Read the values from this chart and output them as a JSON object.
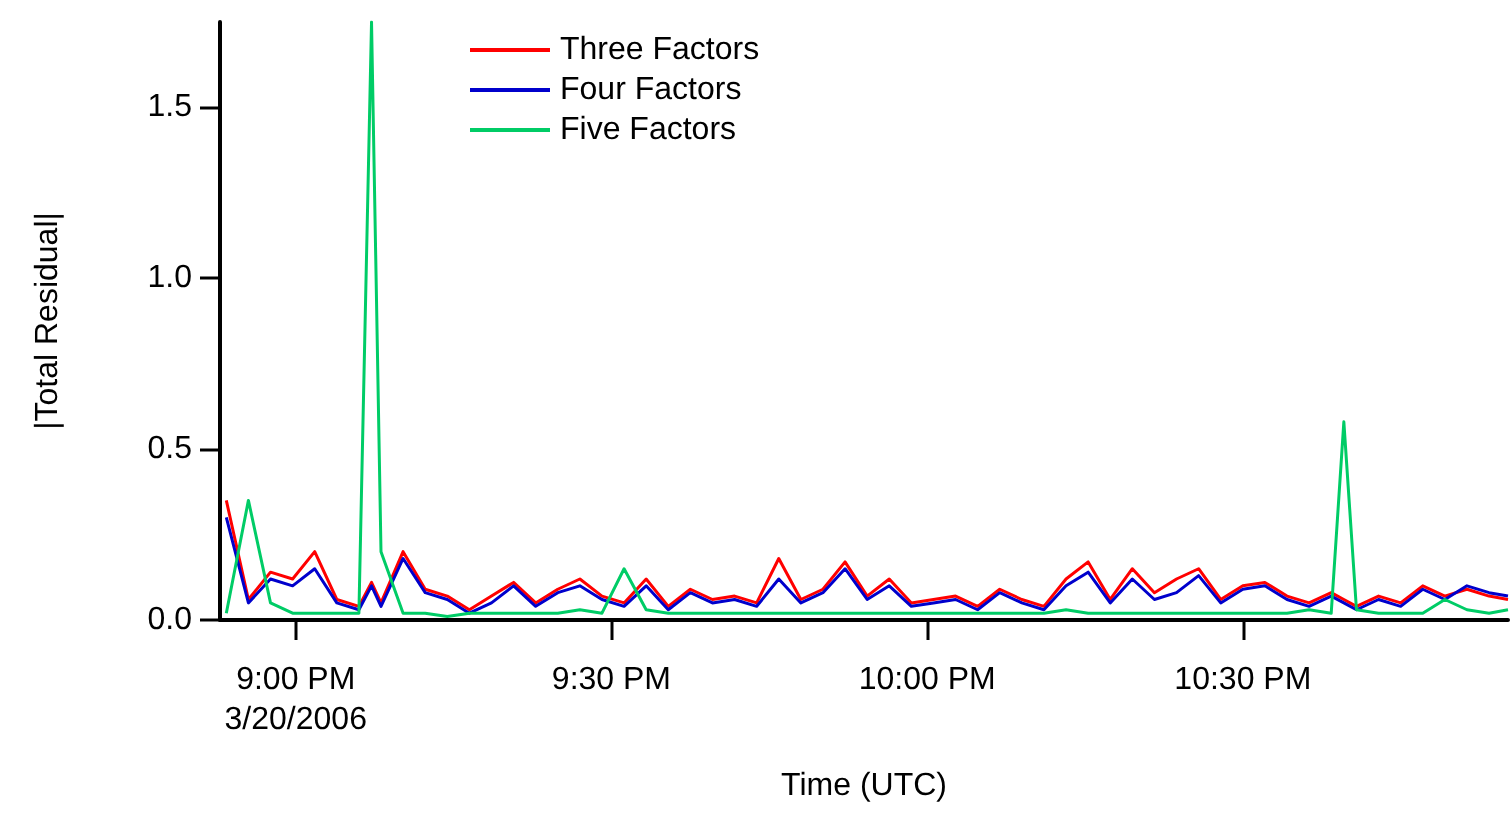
{
  "chart_data": {
    "type": "line",
    "xlabel": "Time (UTC)",
    "ylabel": "|Total Residual|",
    "x": [
      20.89,
      20.925,
      20.96,
      20.995,
      21.03,
      21.065,
      21.1,
      21.12,
      21.135,
      21.17,
      21.205,
      21.24,
      21.275,
      21.31,
      21.345,
      21.38,
      21.415,
      21.45,
      21.485,
      21.52,
      21.555,
      21.59,
      21.625,
      21.66,
      21.695,
      21.73,
      21.765,
      21.8,
      21.835,
      21.87,
      21.905,
      21.94,
      21.975,
      22.01,
      22.045,
      22.08,
      22.115,
      22.15,
      22.185,
      22.22,
      22.255,
      22.29,
      22.325,
      22.36,
      22.395,
      22.43,
      22.465,
      22.5,
      22.535,
      22.57,
      22.605,
      22.64,
      22.66,
      22.68,
      22.715,
      22.75,
      22.785,
      22.82,
      22.855,
      22.89,
      22.92
    ],
    "series": [
      {
        "name": "Three Factors",
        "color": "#ff0000",
        "values": [
          0.35,
          0.06,
          0.14,
          0.12,
          0.2,
          0.06,
          0.04,
          0.11,
          0.05,
          0.2,
          0.09,
          0.07,
          0.03,
          0.07,
          0.11,
          0.05,
          0.09,
          0.12,
          0.07,
          0.05,
          0.12,
          0.04,
          0.09,
          0.06,
          0.07,
          0.05,
          0.18,
          0.06,
          0.09,
          0.17,
          0.07,
          0.12,
          0.05,
          0.06,
          0.07,
          0.04,
          0.09,
          0.06,
          0.04,
          0.12,
          0.17,
          0.06,
          0.15,
          0.08,
          0.12,
          0.15,
          0.06,
          0.1,
          0.11,
          0.07,
          0.05,
          0.08,
          0.06,
          0.04,
          0.07,
          0.05,
          0.1,
          0.07,
          0.09,
          0.07,
          0.06
        ]
      },
      {
        "name": "Four Factors",
        "color": "#0000cc",
        "values": [
          0.3,
          0.05,
          0.12,
          0.1,
          0.15,
          0.05,
          0.03,
          0.1,
          0.04,
          0.18,
          0.08,
          0.06,
          0.02,
          0.05,
          0.1,
          0.04,
          0.08,
          0.1,
          0.06,
          0.04,
          0.1,
          0.03,
          0.08,
          0.05,
          0.06,
          0.04,
          0.12,
          0.05,
          0.08,
          0.15,
          0.06,
          0.1,
          0.04,
          0.05,
          0.06,
          0.03,
          0.08,
          0.05,
          0.03,
          0.1,
          0.14,
          0.05,
          0.12,
          0.06,
          0.08,
          0.13,
          0.05,
          0.09,
          0.1,
          0.06,
          0.04,
          0.07,
          0.05,
          0.03,
          0.06,
          0.04,
          0.09,
          0.06,
          0.1,
          0.08,
          0.07
        ]
      },
      {
        "name": "Five Factors",
        "color": "#00cc66",
        "values": [
          0.02,
          0.35,
          0.05,
          0.02,
          0.02,
          0.02,
          0.02,
          1.75,
          0.2,
          0.02,
          0.02,
          0.01,
          0.02,
          0.02,
          0.02,
          0.02,
          0.02,
          0.03,
          0.02,
          0.15,
          0.03,
          0.02,
          0.02,
          0.02,
          0.02,
          0.02,
          0.02,
          0.02,
          0.02,
          0.02,
          0.02,
          0.02,
          0.02,
          0.02,
          0.02,
          0.02,
          0.02,
          0.02,
          0.02,
          0.03,
          0.02,
          0.02,
          0.02,
          0.02,
          0.02,
          0.02,
          0.02,
          0.02,
          0.02,
          0.02,
          0.03,
          0.02,
          0.58,
          0.03,
          0.02,
          0.02,
          0.02,
          0.06,
          0.03,
          0.02,
          0.03
        ]
      }
    ],
    "xlim": [
      20.88,
      22.92
    ],
    "xticks": [
      {
        "value": 21,
        "label": "9:00 PM\n3/20/2006"
      },
      {
        "value": 21.5,
        "label": "9:30 PM"
      },
      {
        "value": 22,
        "label": "10:00 PM"
      },
      {
        "value": 22.5,
        "label": "10:30 PM"
      }
    ],
    "ylim": [
      0,
      1.75
    ],
    "yticks": [
      {
        "value": 0,
        "label": "0.0"
      },
      {
        "value": 0.5,
        "label": "0.5"
      },
      {
        "value": 1,
        "label": "1.0"
      },
      {
        "value": 1.5,
        "label": "1.5"
      }
    ],
    "legend": "top",
    "grid": false,
    "marker": "none",
    "line_style": "solid"
  }
}
